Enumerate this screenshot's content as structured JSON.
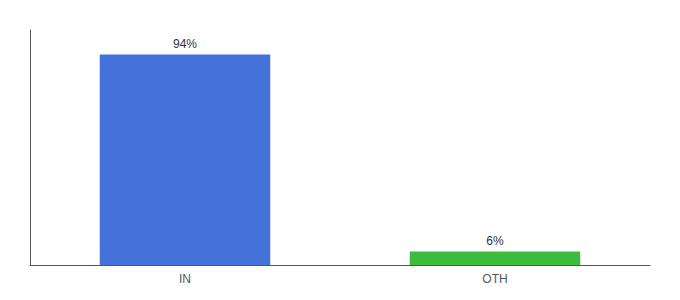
{
  "chart_data": {
    "type": "bar",
    "categories": [
      "IN",
      "OTH"
    ],
    "values": [
      94,
      6
    ],
    "value_labels": [
      "94%",
      "6%"
    ],
    "colors": [
      "#4472db",
      "#3dbb3d"
    ],
    "ylim": [
      0,
      105
    ],
    "data_labels": true,
    "tick_labels": "x",
    "grid": false
  }
}
